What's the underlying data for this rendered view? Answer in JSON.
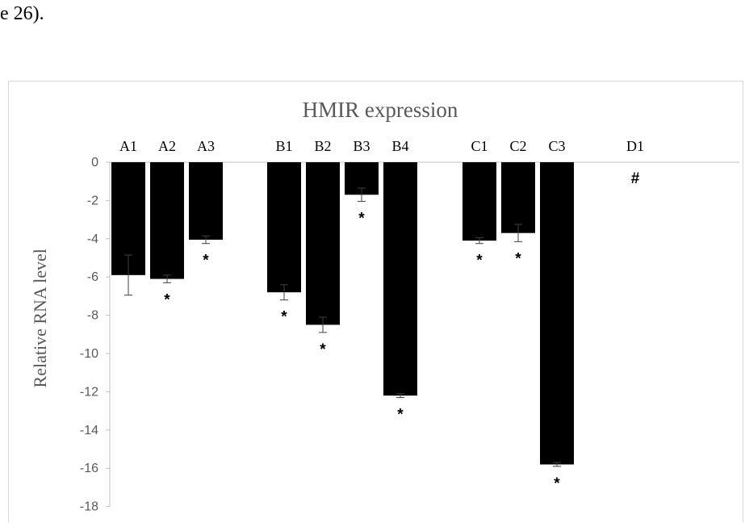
{
  "page": {
    "preceding_text": "e 26)."
  },
  "chart_data": {
    "type": "bar",
    "title": "HMIR expression",
    "xlabel": "",
    "ylabel": "Relative RNA level",
    "ylim": [
      -18,
      0
    ],
    "yticks": [
      0,
      -2,
      -4,
      -6,
      -8,
      -10,
      -12,
      -14,
      -16,
      -18
    ],
    "grid": false,
    "legend": "none",
    "bar_color": "#000000",
    "categories": [
      "A1",
      "A2",
      "A3",
      "B1",
      "B2",
      "B3",
      "B4",
      "C1",
      "C2",
      "C3",
      "D1"
    ],
    "values": [
      -5.9,
      -6.1,
      -4.05,
      -6.8,
      -8.5,
      -1.7,
      -12.2,
      -4.1,
      -3.7,
      -15.8,
      0
    ],
    "error": [
      1.05,
      0.2,
      0.2,
      0.4,
      0.4,
      0.35,
      0.1,
      0.15,
      0.45,
      0.1,
      0
    ],
    "significance": [
      "",
      "*",
      "*",
      "*",
      "*",
      "*",
      "*",
      "*",
      "*",
      "*",
      "#"
    ]
  }
}
